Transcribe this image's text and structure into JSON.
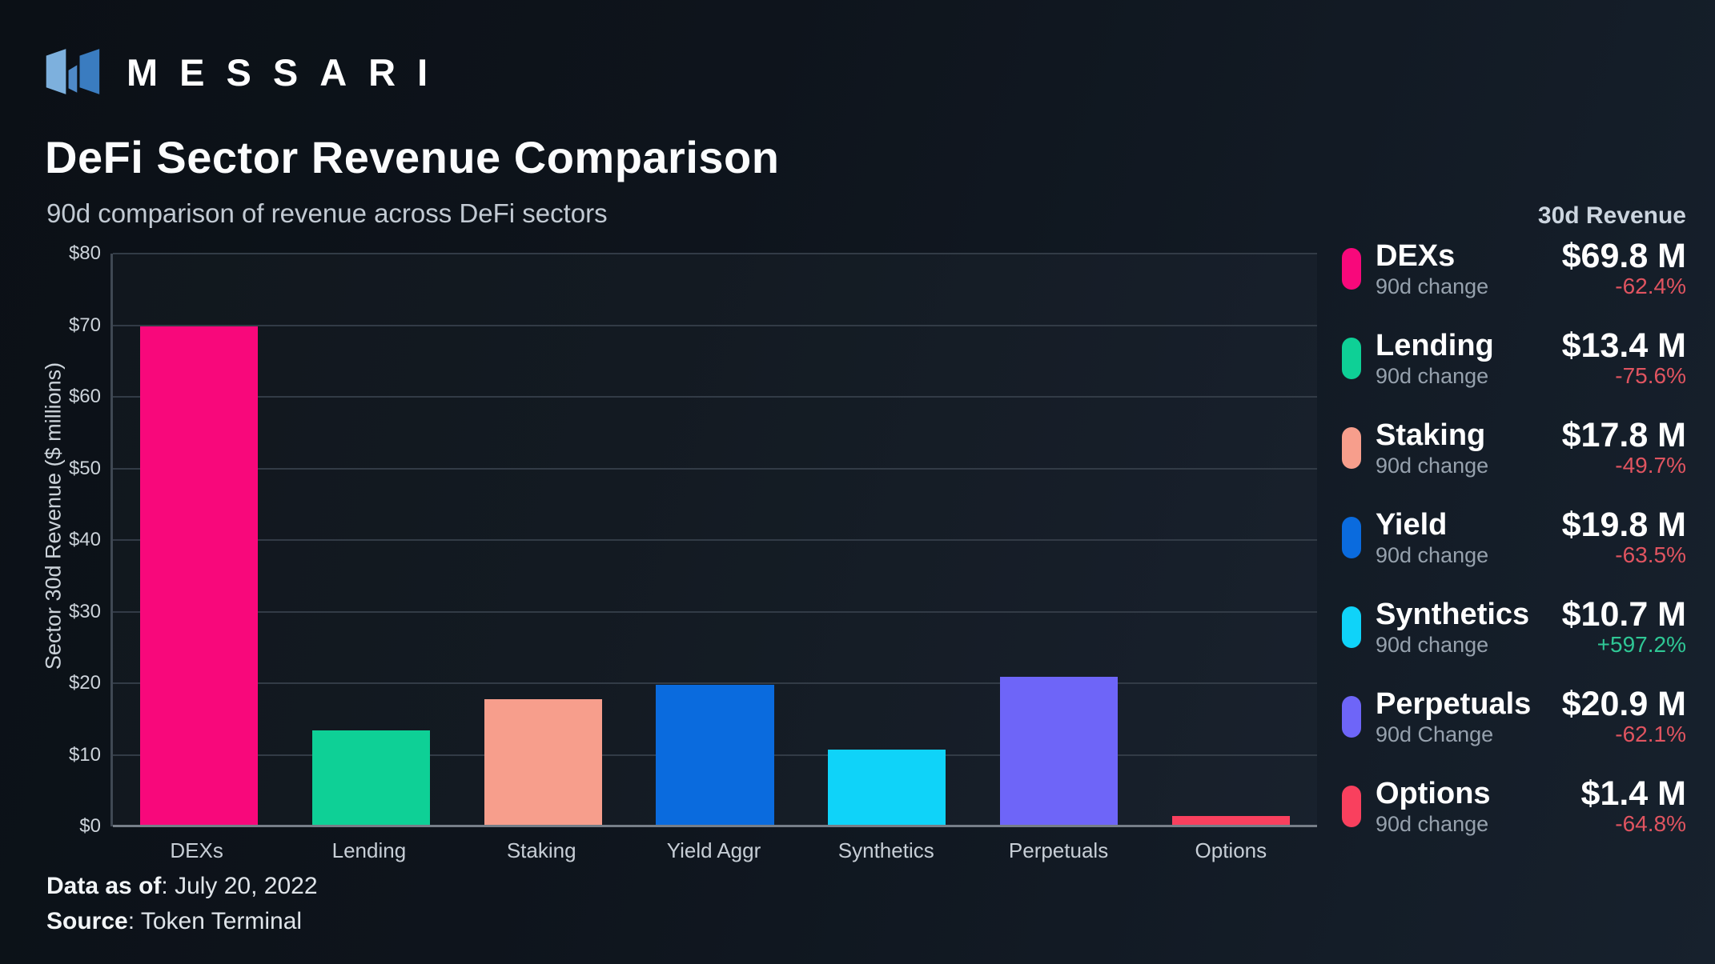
{
  "brand": {
    "name": "MESSARI"
  },
  "header": {
    "title": "DeFi Sector Revenue Comparison",
    "subtitle": "90d comparison of revenue across DeFi sectors"
  },
  "chart_data": {
    "type": "bar",
    "title": "DeFi Sector Revenue Comparison",
    "subtitle": "90d comparison of revenue across DeFi sectors",
    "xlabel": "",
    "ylabel": "Sector 30d Revenue ($ millions)",
    "ylim": [
      0,
      80
    ],
    "ytick_step": 10,
    "ytick_prefix": "$",
    "grid": "horizontal",
    "legend_position": "right",
    "categories": [
      "DEXs",
      "Lending",
      "Staking",
      "Yield Aggr",
      "Synthetics",
      "Perpetuals",
      "Options"
    ],
    "values": [
      69.8,
      13.4,
      17.8,
      19.8,
      10.7,
      20.9,
      1.4
    ],
    "bar_colors": [
      "#f8087b",
      "#0ed096",
      "#f79e8c",
      "#0a6bde",
      "#0fd3f9",
      "#6e65f8",
      "#f9405e"
    ]
  },
  "legend": {
    "header": "30d Revenue",
    "entries": [
      {
        "name": "DEXs",
        "sub": "90d change",
        "value": "$69.8 M",
        "change": "-62.4%",
        "direction": "down",
        "color": "#f8087b"
      },
      {
        "name": "Lending",
        "sub": "90d change",
        "value": "$13.4 M",
        "change": "-75.6%",
        "direction": "down",
        "color": "#0ed096"
      },
      {
        "name": "Staking",
        "sub": "90d change",
        "value": "$17.8 M",
        "change": "-49.7%",
        "direction": "down",
        "color": "#f79e8c"
      },
      {
        "name": "Yield",
        "sub": "90d change",
        "value": "$19.8 M",
        "change": "-63.5%",
        "direction": "down",
        "color": "#0a6bde"
      },
      {
        "name": "Synthetics",
        "sub": "90d change",
        "value": "$10.7 M",
        "change": "+597.2%",
        "direction": "up",
        "color": "#0fd3f9"
      },
      {
        "name": "Perpetuals",
        "sub": "90d Change",
        "value": "$20.9 M",
        "change": "-62.1%",
        "direction": "down",
        "color": "#6e65f8"
      },
      {
        "name": "Options",
        "sub": "90d change",
        "value": "$1.4 M",
        "change": "-64.8%",
        "direction": "down",
        "color": "#f9405e"
      }
    ]
  },
  "footer": {
    "data_as_of": {
      "label": "Data as of",
      "sep": ": ",
      "value": "July 20, 2022"
    },
    "source": {
      "label": "Source",
      "sep": ": ",
      "value": "Token Terminal"
    }
  },
  "colors": {
    "background_start": "#0b1016",
    "background_end": "#17212d",
    "positive": "#2fc795",
    "negative": "#e05460",
    "gridline": "#323b46",
    "axis_line": "#767e88",
    "logo_blue_light": "#7db0dd",
    "logo_blue_mid": "#4e89c8",
    "logo_blue_dark": "#3a7cc0"
  }
}
